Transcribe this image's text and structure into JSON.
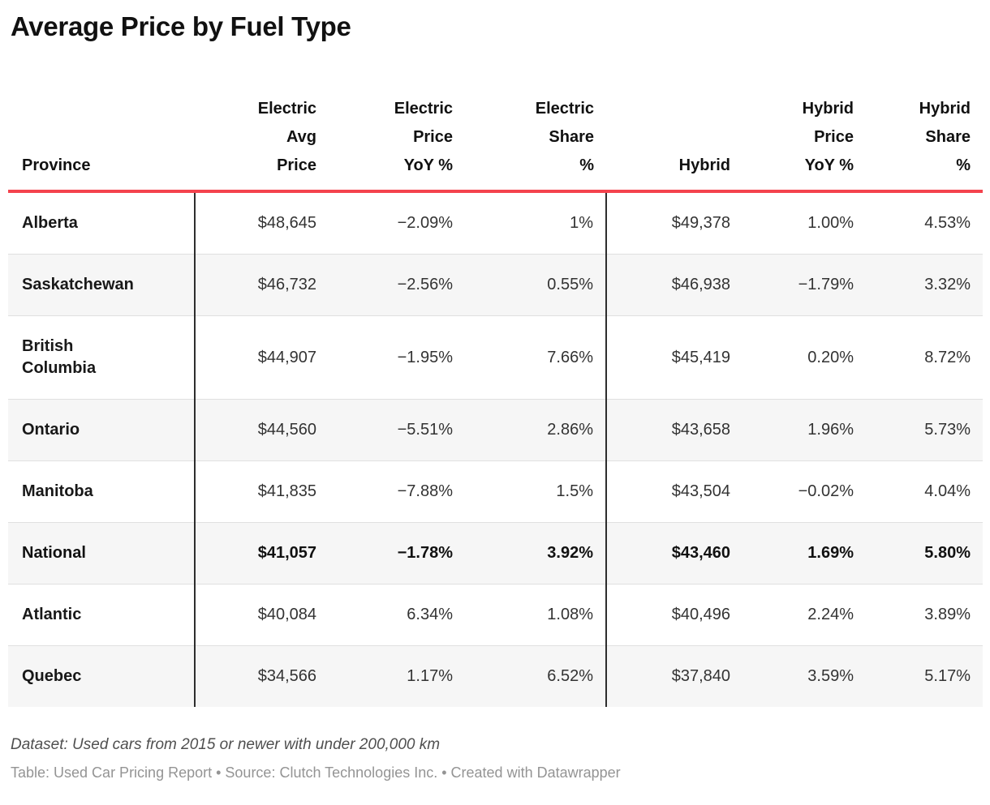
{
  "title": "Average Price by Fuel Type",
  "accent_color": "#f4434d",
  "stripe_color": "#f6f6f6",
  "chart_data": {
    "type": "table",
    "title": "Average Price by Fuel Type",
    "columns": [
      {
        "label": "Province",
        "align": "left"
      },
      {
        "label": "Electric\nAvg\nPrice",
        "align": "right"
      },
      {
        "label": "Electric\nPrice\nYoY %",
        "align": "right"
      },
      {
        "label": "Electric\nShare\n%",
        "align": "right"
      },
      {
        "label": "Hybrid",
        "align": "right"
      },
      {
        "label": "Hybrid\nPrice\nYoY %",
        "align": "right"
      },
      {
        "label": "Hybrid\nShare\n%",
        "align": "right"
      }
    ],
    "rows": [
      {
        "province": "Alberta",
        "values": [
          "$48,645",
          "−2.09%",
          "1%",
          "$49,378",
          "1.00%",
          "4.53%"
        ],
        "bold": false
      },
      {
        "province": "Saskatchewan",
        "values": [
          "$46,732",
          "−2.56%",
          "0.55%",
          "$46,938",
          "−1.79%",
          "3.32%"
        ],
        "bold": false
      },
      {
        "province": "British\nColumbia",
        "values": [
          "$44,907",
          "−1.95%",
          "7.66%",
          "$45,419",
          "0.20%",
          "8.72%"
        ],
        "bold": false
      },
      {
        "province": "Ontario",
        "values": [
          "$44,560",
          "−5.51%",
          "2.86%",
          "$43,658",
          "1.96%",
          "5.73%"
        ],
        "bold": false
      },
      {
        "province": "Manitoba",
        "values": [
          "$41,835",
          "−7.88%",
          "1.5%",
          "$43,504",
          "−0.02%",
          "4.04%"
        ],
        "bold": false
      },
      {
        "province": "National",
        "values": [
          "$41,057",
          "−1.78%",
          "3.92%",
          "$43,460",
          "1.69%",
          "5.80%"
        ],
        "bold": true
      },
      {
        "province": "Atlantic",
        "values": [
          "$40,084",
          "6.34%",
          "1.08%",
          "$40,496",
          "2.24%",
          "3.89%"
        ],
        "bold": false
      },
      {
        "province": "Quebec",
        "values": [
          "$34,566",
          "1.17%",
          "6.52%",
          "$37,840",
          "3.59%",
          "5.17%"
        ],
        "bold": false
      }
    ]
  },
  "footer": {
    "dataset_note": "Dataset: Used cars from 2015 or newer with under 200,000 km",
    "credit": "Table: Used Car Pricing Report • Source: Clutch Technologies Inc. • Created with Datawrapper"
  }
}
